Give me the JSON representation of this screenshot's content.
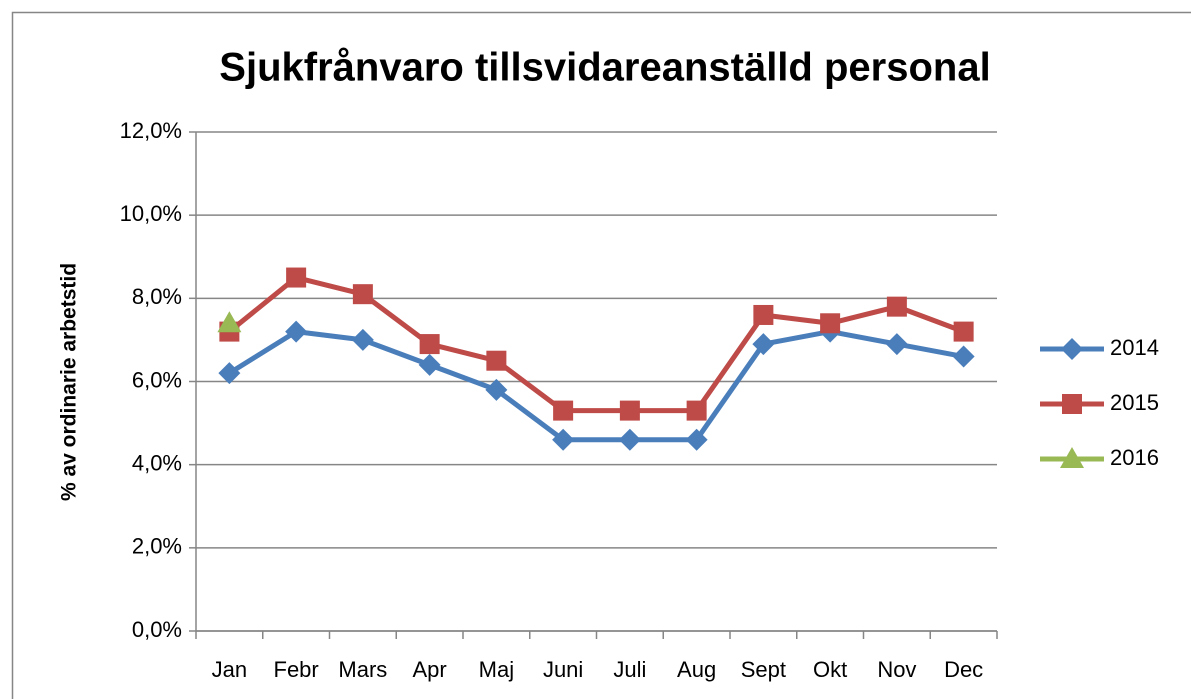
{
  "chart_data": {
    "type": "line",
    "title": "Sjukfrånvaro  tillsvidareanställd  personal",
    "y_label": "% av ordinarie arbetstid",
    "categories": [
      "Jan",
      "Febr",
      "Mars",
      "Apr",
      "Maj",
      "Juni",
      "Juli",
      "Aug",
      "Sept",
      "Okt",
      "Nov",
      "Dec"
    ],
    "series": [
      {
        "name": "2014",
        "color": "#4a7ebb",
        "marker": "diamond",
        "values": [
          6.2,
          7.2,
          7.0,
          6.4,
          5.8,
          4.6,
          4.6,
          4.6,
          6.9,
          7.2,
          6.9,
          6.6
        ]
      },
      {
        "name": "2015",
        "color": "#be4b48",
        "marker": "square",
        "values": [
          7.2,
          8.5,
          8.1,
          6.9,
          6.5,
          5.3,
          5.3,
          5.3,
          7.6,
          7.4,
          7.8,
          7.2
        ]
      },
      {
        "name": "2016",
        "color": "#98b954",
        "marker": "triangle",
        "values": [
          7.4,
          null,
          null,
          null,
          null,
          null,
          null,
          null,
          null,
          null,
          null,
          null
        ]
      }
    ],
    "ylim": [
      0,
      12
    ],
    "yticks": [
      {
        "value": 0,
        "label": "0,0%"
      },
      {
        "value": 2,
        "label": "2,0%"
      },
      {
        "value": 4,
        "label": "4,0%"
      },
      {
        "value": 6,
        "label": "6,0%"
      },
      {
        "value": 8,
        "label": "8,0%"
      },
      {
        "value": 10,
        "label": "10,0%"
      },
      {
        "value": 12,
        "label": "12,0%"
      }
    ],
    "grid": true,
    "legend": "right"
  }
}
